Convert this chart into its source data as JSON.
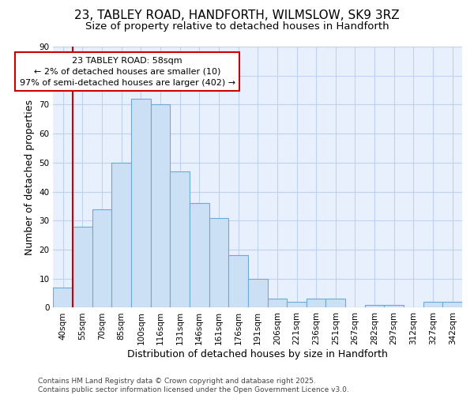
{
  "title_line1": "23, TABLEY ROAD, HANDFORTH, WILMSLOW, SK9 3RZ",
  "title_line2": "Size of property relative to detached houses in Handforth",
  "xlabel": "Distribution of detached houses by size in Handforth",
  "ylabel": "Number of detached properties",
  "categories": [
    "40sqm",
    "55sqm",
    "70sqm",
    "85sqm",
    "100sqm",
    "116sqm",
    "131sqm",
    "146sqm",
    "161sqm",
    "176sqm",
    "191sqm",
    "206sqm",
    "221sqm",
    "236sqm",
    "251sqm",
    "267sqm",
    "282sqm",
    "297sqm",
    "312sqm",
    "327sqm",
    "342sqm"
  ],
  "values": [
    7,
    28,
    34,
    50,
    72,
    70,
    47,
    36,
    31,
    18,
    10,
    3,
    2,
    3,
    3,
    0,
    1,
    1,
    0,
    2,
    2
  ],
  "bar_color": "#cce0f5",
  "bar_edge_color": "#6aaad4",
  "annotation_box_text": "23 TABLEY ROAD: 58sqm\n← 2% of detached houses are smaller (10)\n97% of semi-detached houses are larger (402) →",
  "annotation_box_color": "#ffffff",
  "annotation_box_edge_color": "#cc0000",
  "vertical_line_color": "#cc0000",
  "ylim": [
    0,
    90
  ],
  "yticks": [
    0,
    10,
    20,
    30,
    40,
    50,
    60,
    70,
    80,
    90
  ],
  "bg_color": "#ffffff",
  "plot_bg_color": "#e8f0fe",
  "grid_color": "#c0d0f0",
  "footer_text": "Contains HM Land Registry data © Crown copyright and database right 2025.\nContains public sector information licensed under the Open Government Licence v3.0.",
  "title_fontsize": 11,
  "subtitle_fontsize": 9.5,
  "axis_label_fontsize": 9,
  "tick_fontsize": 7.5,
  "annotation_fontsize": 8,
  "footer_fontsize": 6.5
}
